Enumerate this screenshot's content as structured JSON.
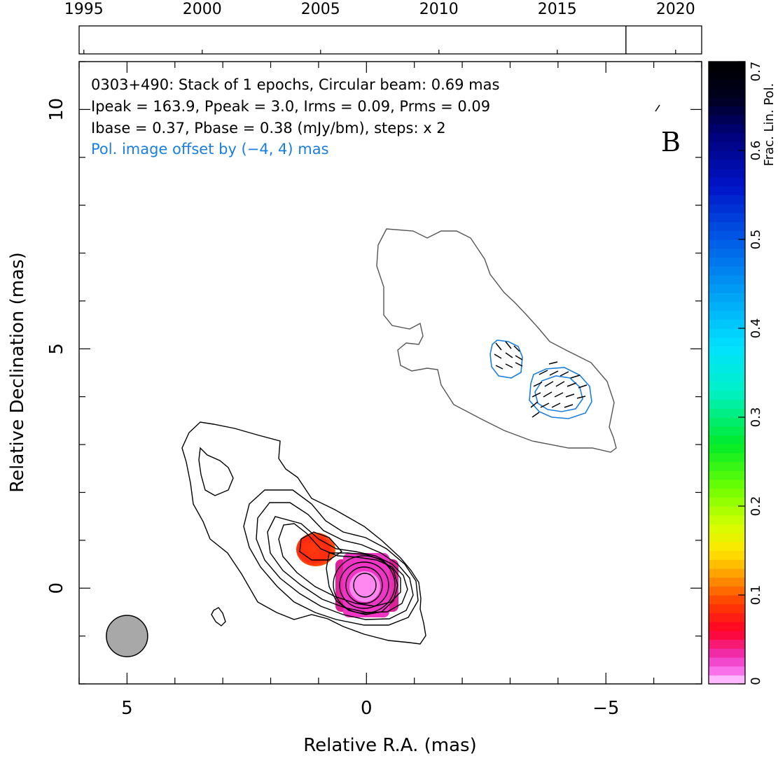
{
  "chart_data": {
    "type": "contour-map",
    "header_lines": [
      "0303+490: Stack of 1 epochs, Circular beam: 0.69 mas",
      "Ipeak = 163.9, Ppeak = 3.0, Irms = 0.09, Prms = 0.09",
      "Ibase = 0.37, Pbase = 0.38 (mJy/bm), steps: x 2"
    ],
    "offset_note": "Pol. image offset by (−4, 4) mas",
    "panel_letter": "B",
    "xlabel": "Relative R.A. (mas)",
    "ylabel": "Relative Declination (mas)",
    "xlim": [
      6,
      -7
    ],
    "ylim": [
      -2,
      11
    ],
    "x_ticks": [
      {
        "v": 5,
        "label": "5"
      },
      {
        "v": 0,
        "label": "0"
      },
      {
        "v": -5,
        "label": "−5"
      }
    ],
    "y_ticks": [
      {
        "v": 0,
        "label": "0"
      },
      {
        "v": 5,
        "label": "5"
      },
      {
        "v": 10,
        "label": "10"
      }
    ],
    "timeline": {
      "range": [
        1994.8,
        2021.1
      ],
      "ticks": [
        "1995",
        "2000",
        "2005",
        "2010",
        "2015",
        "2020"
      ],
      "tick_values": [
        1995,
        2000,
        2005,
        2010,
        2015,
        2020
      ],
      "epochs": [
        2017.9
      ]
    },
    "colorbar": {
      "label": "Frac. Lin. Pol.",
      "range": [
        0,
        0.7
      ],
      "ticks": [
        "0",
        "0.1",
        "0.2",
        "0.3",
        "0.4",
        "0.5",
        "0.6",
        "0.7"
      ],
      "tick_values": [
        0,
        0.1,
        0.2,
        0.3,
        0.4,
        0.5,
        0.6,
        0.7
      ]
    },
    "beam": {
      "x": 5.0,
      "y": -1.0,
      "fwhm_mas": 0.69
    },
    "colors": {
      "stokes_i_contour": "#000000",
      "pol_contour": "#1a7fe0",
      "offset_text": "#1a7fe0",
      "beam_fill": "#a8a8a8"
    }
  }
}
